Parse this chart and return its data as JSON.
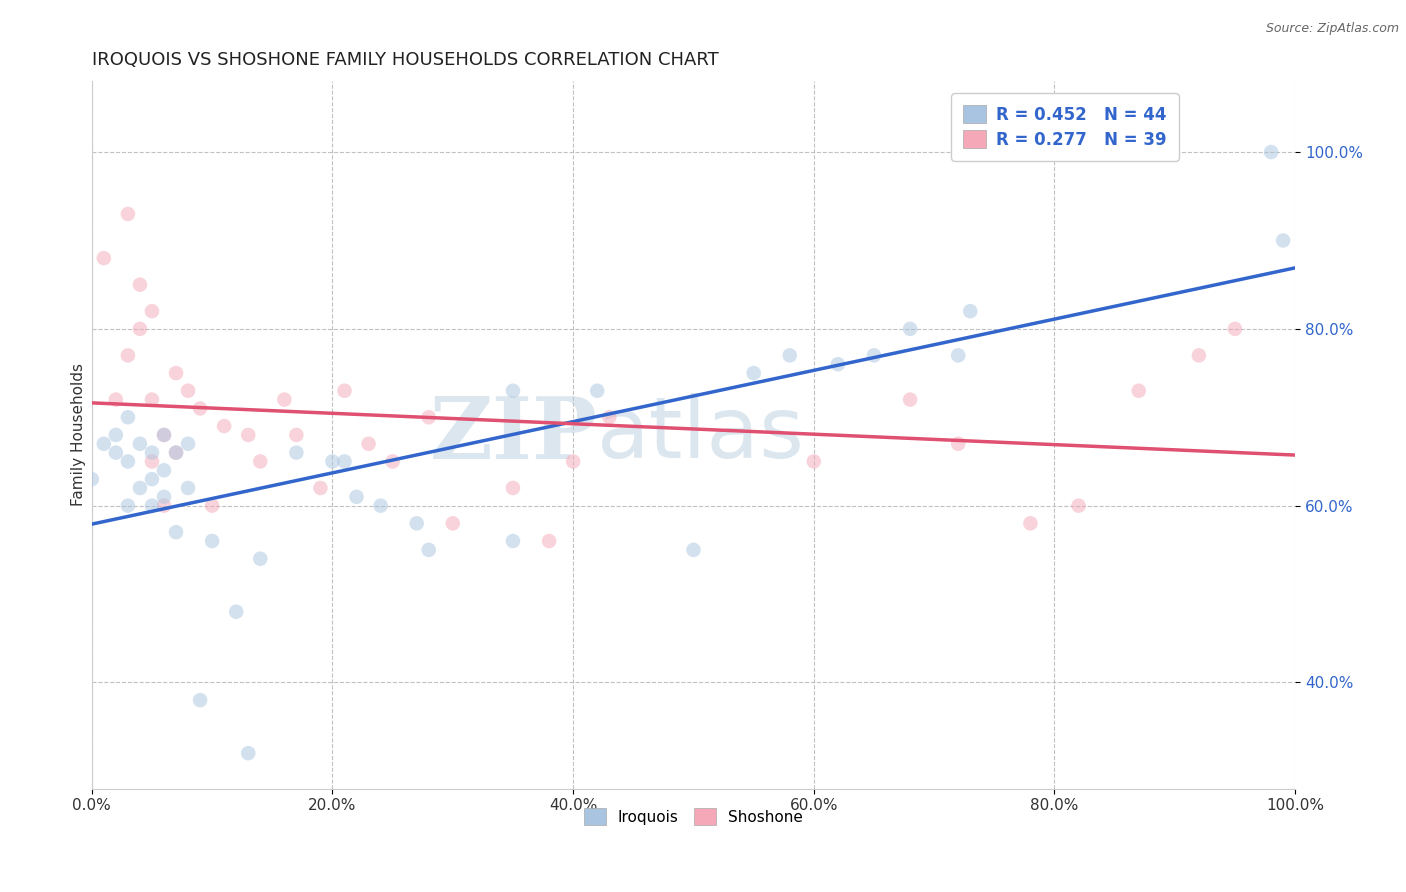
{
  "title": "IROQUOIS VS SHOSHONE FAMILY HOUSEHOLDS CORRELATION CHART",
  "source_text": "Source: ZipAtlas.com",
  "ylabel": "Family Households",
  "xlim": [
    0.0,
    1.0
  ],
  "xtick_labels": [
    "0.0%",
    "20.0%",
    "40.0%",
    "60.0%",
    "80.0%",
    "100.0%"
  ],
  "xtick_positions": [
    0.0,
    0.2,
    0.4,
    0.6,
    0.8,
    1.0
  ],
  "ytick_labels": [
    "40.0%",
    "60.0%",
    "80.0%",
    "100.0%"
  ],
  "ytick_positions": [
    0.4,
    0.6,
    0.8,
    1.0
  ],
  "ylim_low": 0.28,
  "ylim_high": 1.08,
  "iroquois_color": "#a8c4e0",
  "shoshone_color": "#f4a8b8",
  "iroquois_line_color": "#3366cc",
  "shoshone_line_color": "#e05070",
  "legend_iroquois_label": "R = 0.452   N = 44",
  "legend_shoshone_label": "R = 0.277   N = 39",
  "legend_text_color": "#3366cc",
  "watermark_zip": "ZIP",
  "watermark_atlas": "atlas",
  "grid_color": "#bbbbbb",
  "grid_linestyle": "--",
  "background_color": "#ffffff",
  "iroquois_x": [
    0.0,
    0.01,
    0.02,
    0.02,
    0.03,
    0.03,
    0.03,
    0.04,
    0.04,
    0.05,
    0.05,
    0.05,
    0.06,
    0.06,
    0.06,
    0.07,
    0.07,
    0.08,
    0.08,
    0.09,
    0.1,
    0.12,
    0.13,
    0.14,
    0.17,
    0.2,
    0.21,
    0.22,
    0.24,
    0.27,
    0.28,
    0.35,
    0.35,
    0.42,
    0.5,
    0.55,
    0.58,
    0.62,
    0.65,
    0.68,
    0.72,
    0.73,
    0.98,
    0.99
  ],
  "iroquois_y": [
    0.63,
    0.67,
    0.66,
    0.68,
    0.6,
    0.65,
    0.7,
    0.62,
    0.67,
    0.6,
    0.63,
    0.66,
    0.61,
    0.64,
    0.68,
    0.57,
    0.66,
    0.62,
    0.67,
    0.38,
    0.56,
    0.48,
    0.32,
    0.54,
    0.66,
    0.65,
    0.65,
    0.61,
    0.6,
    0.58,
    0.55,
    0.56,
    0.73,
    0.73,
    0.55,
    0.75,
    0.77,
    0.76,
    0.77,
    0.8,
    0.77,
    0.82,
    1.0,
    0.9
  ],
  "shoshone_x": [
    0.01,
    0.02,
    0.03,
    0.03,
    0.04,
    0.04,
    0.05,
    0.05,
    0.05,
    0.06,
    0.06,
    0.07,
    0.07,
    0.08,
    0.09,
    0.1,
    0.11,
    0.13,
    0.14,
    0.16,
    0.17,
    0.19,
    0.21,
    0.23,
    0.25,
    0.28,
    0.3,
    0.35,
    0.38,
    0.4,
    0.43,
    0.6,
    0.68,
    0.72,
    0.78,
    0.82,
    0.87,
    0.92,
    0.95
  ],
  "shoshone_y": [
    0.88,
    0.72,
    0.77,
    0.93,
    0.8,
    0.85,
    0.65,
    0.72,
    0.82,
    0.6,
    0.68,
    0.66,
    0.75,
    0.73,
    0.71,
    0.6,
    0.69,
    0.68,
    0.65,
    0.72,
    0.68,
    0.62,
    0.73,
    0.67,
    0.65,
    0.7,
    0.58,
    0.62,
    0.56,
    0.65,
    0.7,
    0.65,
    0.72,
    0.67,
    0.58,
    0.6,
    0.73,
    0.77,
    0.8
  ],
  "title_fontsize": 13,
  "axis_label_fontsize": 11,
  "tick_fontsize": 11,
  "marker_size": 110,
  "marker_alpha": 0.5,
  "line_width": 2.5
}
